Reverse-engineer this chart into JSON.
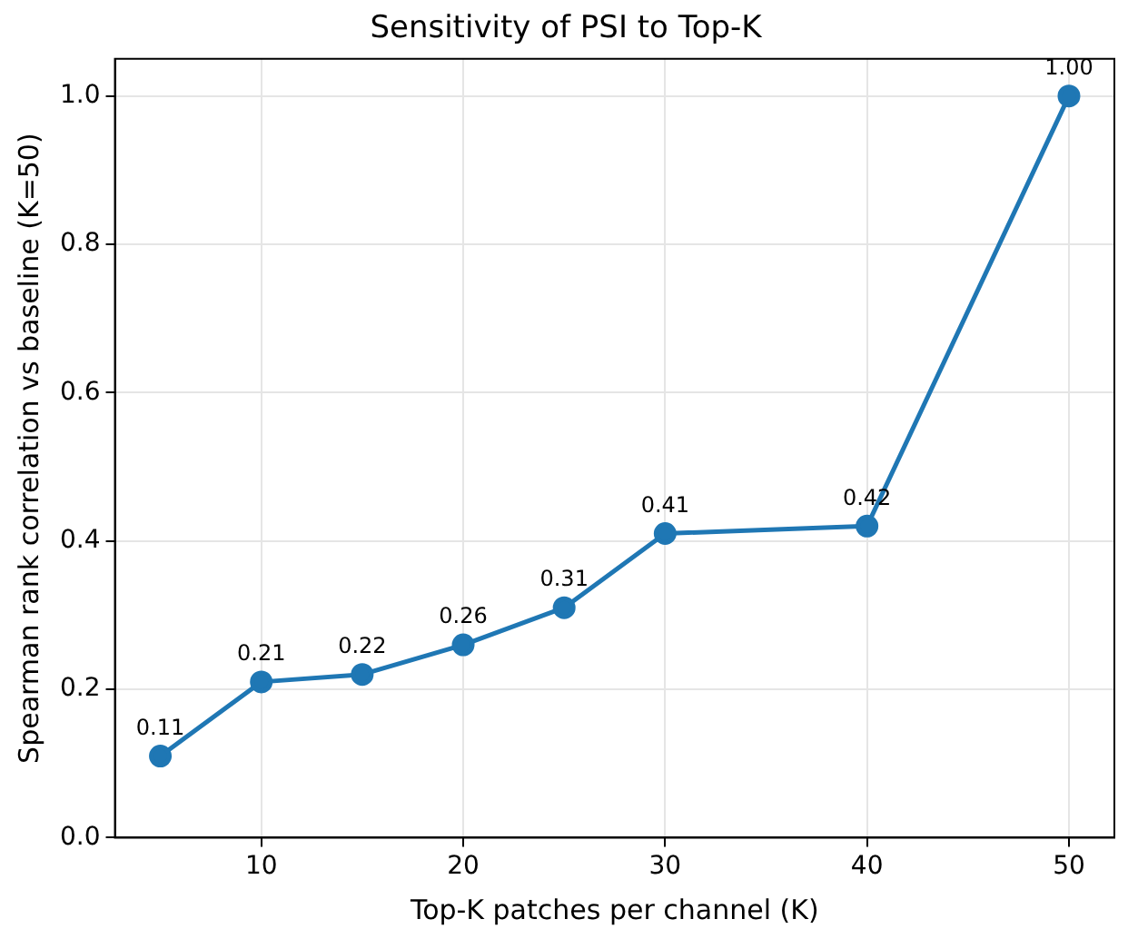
{
  "chart_data": {
    "type": "line",
    "title": "Sensitivity of PSI to Top-K",
    "xlabel": "Top-K patches per channel (K)",
    "ylabel": "Spearman rank correlation vs baseline (K=50)",
    "x": [
      5,
      10,
      15,
      20,
      25,
      30,
      40,
      50
    ],
    "series": [
      {
        "color": "#1f77b4",
        "values": [
          0.11,
          0.21,
          0.22,
          0.26,
          0.31,
          0.41,
          0.42,
          1.0
        ],
        "value_labels": [
          "0.11",
          "0.21",
          "0.22",
          "0.26",
          "0.31",
          "0.41",
          "0.42",
          "1.00"
        ]
      }
    ],
    "xlim": [
      2.75,
      52.25
    ],
    "xticks": [
      10,
      20,
      30,
      40,
      50
    ],
    "ylim": [
      0,
      1.05
    ],
    "yticks": [
      {
        "value": 0,
        "label": "0.0"
      },
      {
        "value": 0.2,
        "label": "0.2"
      },
      {
        "value": 0.4,
        "label": "0.4"
      },
      {
        "value": 0.6,
        "label": "0.6"
      },
      {
        "value": 0.8,
        "label": "0.8"
      },
      {
        "value": 1,
        "label": "1.0"
      }
    ],
    "grid": true,
    "legend": false,
    "marker": "circle",
    "line_style": "solid"
  }
}
